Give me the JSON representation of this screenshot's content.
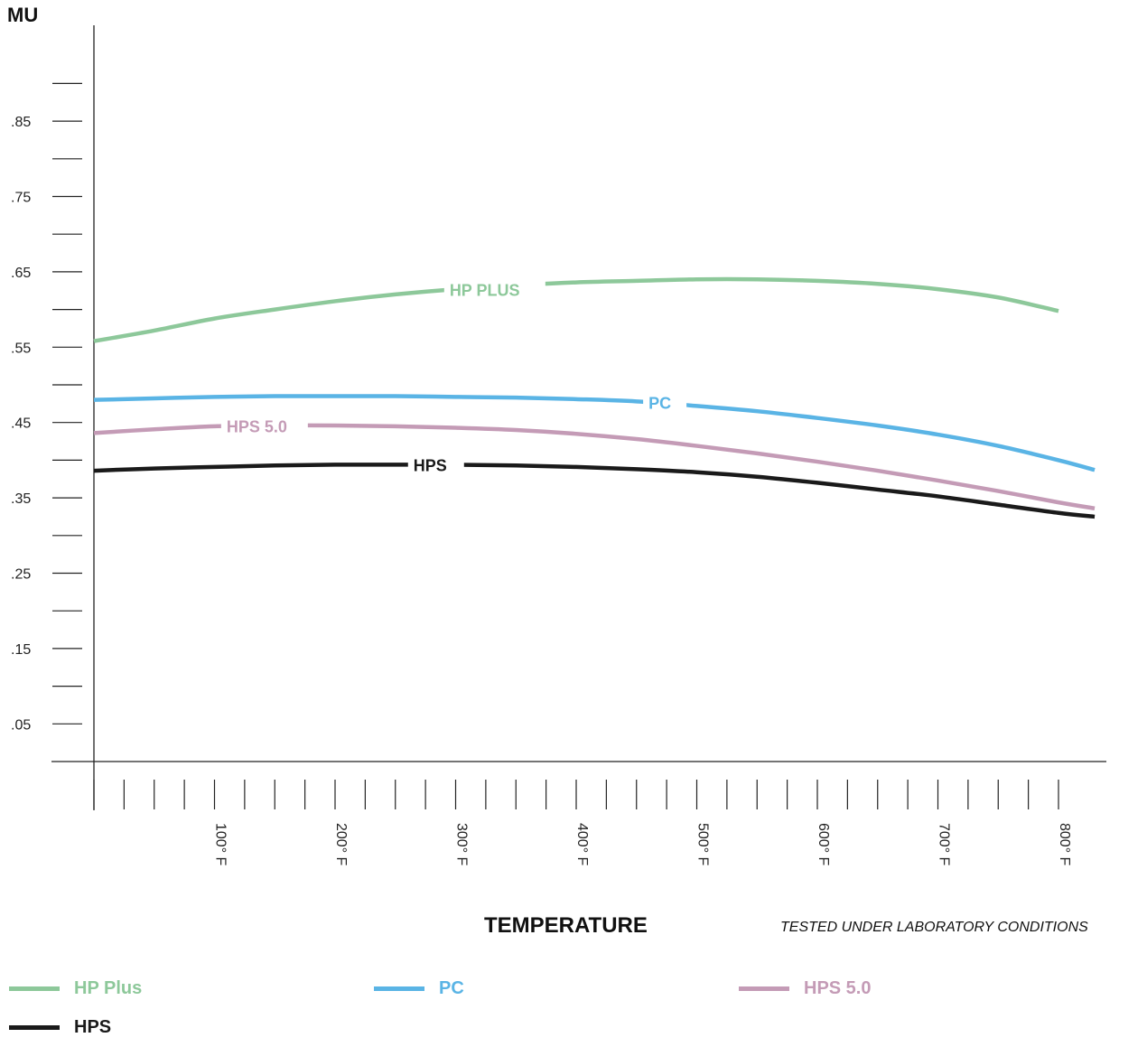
{
  "chart_data": {
    "type": "line",
    "ylabel": "MU",
    "xlabel": "TEMPERATURE",
    "footnote": "TESTED UNDER LABORATORY CONDITIONS",
    "ylim": [
      -0.05,
      0.95
    ],
    "xlim": [
      -25,
      1100
    ],
    "yticks": [
      ".05",
      ".15",
      ".25",
      ".35",
      ".45",
      ".55",
      ".65",
      ".75",
      ".85"
    ],
    "xticks": [
      "100° F",
      "200° F",
      "300° F",
      "400° F",
      "500° F",
      "600° F",
      "700° F",
      "800° F"
    ],
    "grid": false,
    "legend_position": "bottom",
    "series": [
      {
        "name": "HP PLUS",
        "legend": "HP Plus",
        "color": "#8dc89a",
        "x": [
          0,
          50,
          100,
          150,
          200,
          250,
          300,
          350,
          400,
          450,
          500,
          550,
          600,
          650,
          700,
          750,
          800
        ],
        "y": [
          0.558,
          0.572,
          0.588,
          0.6,
          0.611,
          0.62,
          0.627,
          0.632,
          0.636,
          0.638,
          0.64,
          0.64,
          0.638,
          0.634,
          0.627,
          0.616,
          0.598
        ]
      },
      {
        "name": "PC",
        "legend": "PC",
        "color": "#5ab4e5",
        "x": [
          0,
          50,
          100,
          150,
          200,
          250,
          300,
          350,
          400,
          450,
          500,
          550,
          600,
          650,
          700,
          750,
          800,
          830
        ],
        "y": [
          0.48,
          0.482,
          0.484,
          0.485,
          0.485,
          0.485,
          0.484,
          0.483,
          0.481,
          0.478,
          0.472,
          0.465,
          0.456,
          0.446,
          0.434,
          0.419,
          0.4,
          0.387
        ]
      },
      {
        "name": "HPS 5.0",
        "legend": "HPS 5.0",
        "color": "#c49bb6",
        "x": [
          0,
          50,
          100,
          150,
          200,
          250,
          300,
          350,
          400,
          450,
          500,
          550,
          600,
          650,
          700,
          750,
          800,
          830
        ],
        "y": [
          0.436,
          0.441,
          0.445,
          0.446,
          0.446,
          0.445,
          0.443,
          0.44,
          0.435,
          0.428,
          0.419,
          0.409,
          0.398,
          0.386,
          0.373,
          0.359,
          0.344,
          0.336
        ]
      },
      {
        "name": "HPS",
        "legend": "HPS",
        "color": "#1a1a1a",
        "x": [
          0,
          50,
          100,
          150,
          200,
          250,
          300,
          350,
          400,
          450,
          500,
          550,
          600,
          650,
          700,
          750,
          800,
          830
        ],
        "y": [
          0.386,
          0.389,
          0.391,
          0.393,
          0.394,
          0.394,
          0.394,
          0.393,
          0.391,
          0.388,
          0.384,
          0.378,
          0.37,
          0.361,
          0.352,
          0.341,
          0.33,
          0.325
        ]
      }
    ]
  }
}
